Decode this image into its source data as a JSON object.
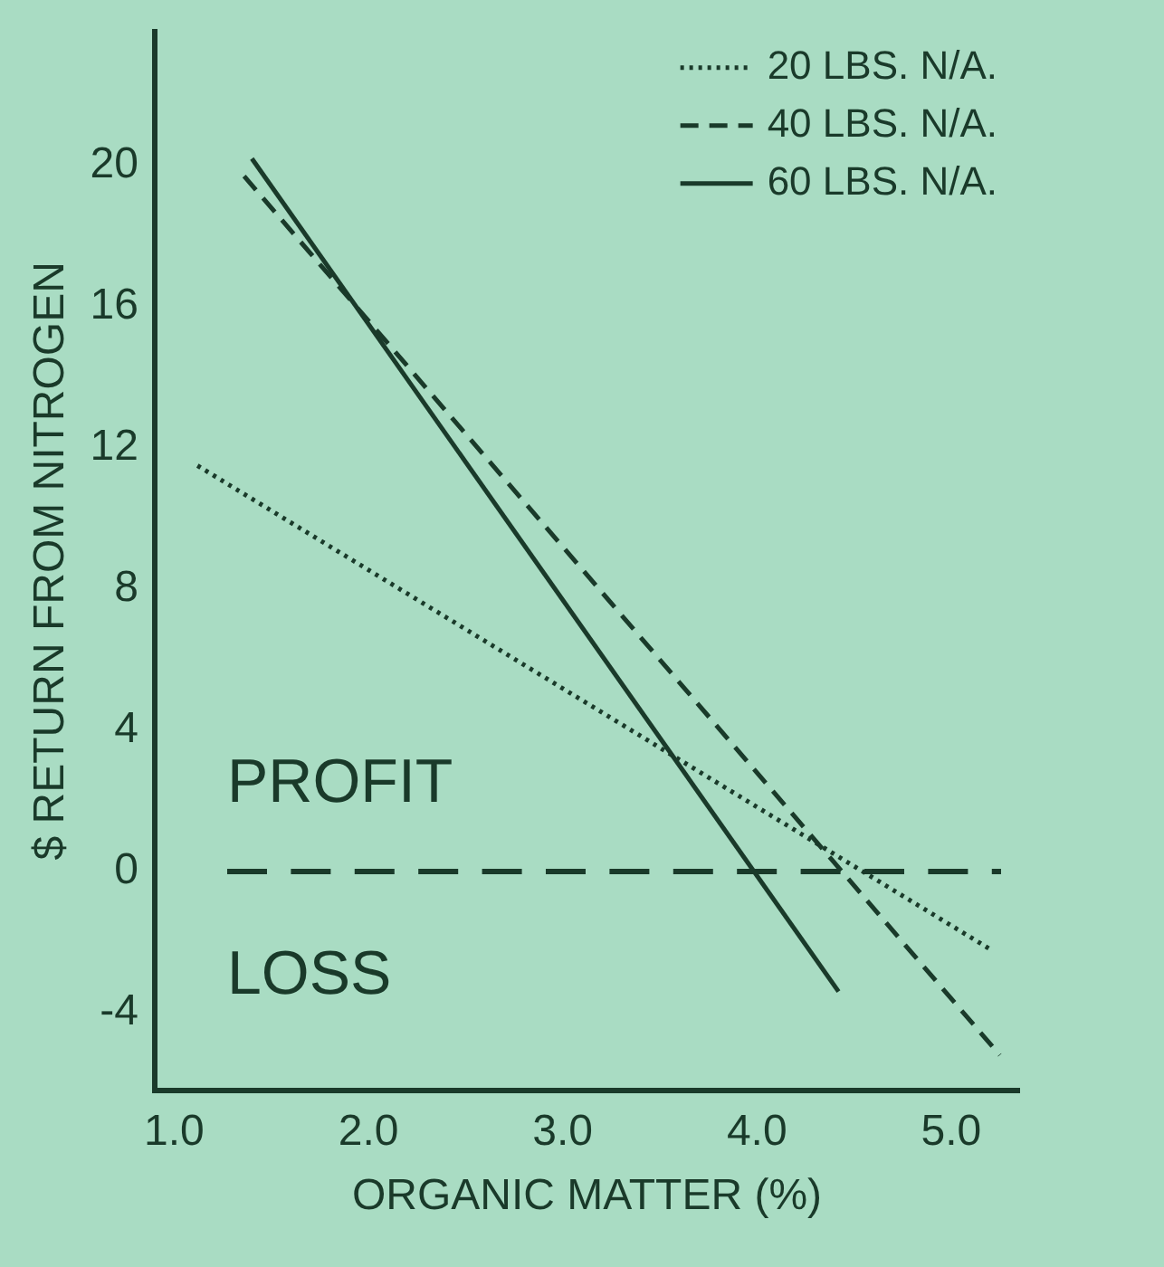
{
  "chart_data": {
    "type": "line",
    "xlabel": "ORGANIC MATTER (%)",
    "ylabel": "$ RETURN FROM NITROGEN",
    "xlim": [
      0.9,
      5.35
    ],
    "ylim": [
      -6.2,
      23.8
    ],
    "xticks": [
      {
        "value": 1,
        "label": "1.0"
      },
      {
        "value": 2,
        "label": "2.0"
      },
      {
        "value": 3,
        "label": "3.0"
      },
      {
        "value": 4,
        "label": "4.0"
      },
      {
        "value": 5,
        "label": "5.0"
      }
    ],
    "yticks": [
      -4,
      0,
      4,
      8,
      12,
      16,
      20
    ],
    "grid": false,
    "legend": "top right",
    "marker": "none",
    "series": [
      {
        "name": "20 LBS. N/A.",
        "color": "#1a3a2a",
        "line_style": "dotted",
        "x": [
          1.12,
          5.2
        ],
        "values": [
          11.5,
          -2.2
        ]
      },
      {
        "name": "40 LBS. N/A.",
        "color": "#1a3a2a",
        "line_style": "dashed",
        "x": [
          1.36,
          5.25
        ],
        "values": [
          19.7,
          -5.2
        ]
      },
      {
        "name": "60 LBS. N/A.",
        "color": "#1a3a2a",
        "line_style": "solid",
        "x": [
          1.4,
          4.42
        ],
        "values": [
          20.2,
          -3.4
        ]
      }
    ],
    "ref_lines": [
      {
        "axis": "y",
        "value": 0,
        "color": "#1a3a2a",
        "line_style": "dashed"
      }
    ],
    "annotations": [
      "PROFIT",
      "LOSS"
    ]
  }
}
